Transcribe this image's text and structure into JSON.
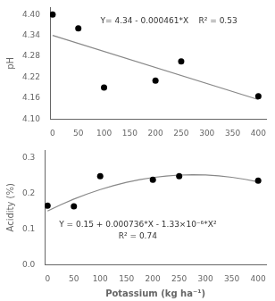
{
  "chart_data": [
    {
      "type": "scatter",
      "ylabel": "pH",
      "annotation": "Y= 4.34 - 0.000461*X    R² = 0.53",
      "series": [
        {
          "type": "line",
          "color": "#888888",
          "x": [
            0,
            400
          ],
          "values": [
            4.34,
            4.1556
          ]
        },
        {
          "type": "scatter",
          "color": "black",
          "marker": "circle",
          "x": [
            0,
            50,
            100,
            200,
            250,
            400
          ],
          "values": [
            4.4,
            4.36,
            4.19,
            4.21,
            4.265,
            4.165
          ]
        }
      ],
      "xlim": [
        -5,
        415
      ],
      "xticks": [
        0,
        50,
        100,
        150,
        200,
        250,
        300,
        350,
        400
      ],
      "ylim": [
        4.1,
        4.42
      ],
      "yticks": [
        {
          "value": 4.1,
          "label": "4.10"
        },
        4.16,
        4.22,
        4.28,
        4.34,
        {
          "value": 4.4,
          "label": "4.40"
        }
      ],
      "grid": false
    },
    {
      "type": "scatter",
      "ylabel": "Acidity (%)",
      "xlabel": "Potassium (kg ha⁻¹)",
      "annotation": [
        "Y = 0.15 + 0.000736*X - 1.33×10⁻⁶*X²",
        "R² = 0.74"
      ],
      "series": [
        {
          "type": "line",
          "color": "#888888",
          "x": [
            0,
            25,
            50,
            75,
            100,
            125,
            150,
            175,
            200,
            225,
            250,
            275,
            300,
            325,
            350,
            375,
            400
          ],
          "values": [
            0.15,
            0.16756875,
            0.183475,
            0.19771875,
            0.2103,
            0.22121875,
            0.230475,
            0.23806875,
            0.244,
            0.24826875,
            0.250875,
            0.25181875,
            0.2511,
            0.24871875,
            0.244675,
            0.23896875,
            0.2316
          ]
        },
        {
          "type": "scatter",
          "color": "black",
          "marker": "circle",
          "x": [
            0,
            50,
            100,
            200,
            250,
            400
          ],
          "values": [
            0.165,
            0.163,
            0.248,
            0.238,
            0.248,
            0.235
          ]
        }
      ],
      "xlim": [
        -5,
        415
      ],
      "xticks": [
        0,
        50,
        100,
        150,
        200,
        250,
        300,
        350,
        400
      ],
      "ylim": [
        0,
        0.32
      ],
      "yticks": [
        {
          "value": 0,
          "label": "0.0"
        },
        0.1,
        0.2,
        0.3
      ],
      "grid": false
    }
  ]
}
